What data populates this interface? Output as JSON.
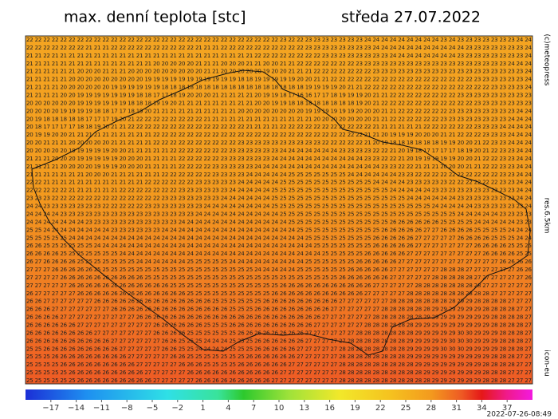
{
  "title": "max. denní teplota [stc]",
  "date": "středa 27.07.2022",
  "credit": "(c)meteopress",
  "resolution": "res.6.5km",
  "model": "icon-eu",
  "timestamp": "2022-07-26-08:49",
  "grid": {
    "rows": [
      "22 22 22 22 22 22 22 22 22 22 22 22 22 22 22 22 22 22 22 22 22 22 22 22 22 22 22 22 22 22 23 22 22 23 23 23 23 23 23 23 24 24 24 24 24 24 24 24 24 23 24 23 23 23 23 23 23 23 24 24",
      "22 22 22 22 22 22 22 21 21 21 22 22 22 22 22 22 22 22 22 22 21 21 21 22 22 22 22 22 22 22 22 22 22 23 23 23 23 23 23 23 23 24 24 24 24 24 24 24 24 24 24 24 23 23 23 23 23 23 23 24",
      "21 21 22 21 21 21 21 21 21 21 21 21 21 21 21 21 21 21 21 21 21 21 21 21 21 21 21 22 22 22 22 22 22 22 22 23 23 23 23 23 23 23 23 24 24 24 24 24 24 24 24 23 23 23 23 23 23 23 23 24",
      "21 21 21 21 21 21 21 21 21 21 21 21 21 21 21 20 20 20 20 20 21 21 21 20 20 20 21 21 20 20 21 21 22 22 22 22 22 22 22 23 23 23 23 23 23 23 23 23 23 23 23 23 23 23 23 23 23 24 24 24",
      "21 21 21 21 21 21 20 20 20 21 21 21 20 20 20 20 20 20 20 20 20 21 21 20 20 20 20 20 19 20 20 21 21 21 22 22 22 22 22 22 22 23 23 23 23 23 23 23 23 23 23 23 23 23 23 23 23 23 23 24",
      "21 21 21 21 21 20 20 20 20 20 20 20 20 20 19 19 19 19 19 19 19 19 19 19 19 18 18 19 19 19 19 19 20 20 21 21 22 22 22 22 22 22 22 22 22 22 22 22 22 22 22 22 22 23 23 23 23 23 23 24",
      "21 21 21 21 20 20 20 20 20 20 19 19 19 19 19 19 18 18 18 18 18 18 18 18 18 18 18 18 18 18 18 18 18 19 19 19 19 20 21 21 22 22 22 22 22 22 22 22 22 22 22 22 22 22 22 23 23 23 23 24",
      "21 21 21 21 20 20 19 19 19 19 19 19 19 18 18 17 17 18 19 20 20 20 21 21 21 21 21 20 19 19 18 17 16 16 17 17 18 19 19 19 20 21 21 22 22 22 22 22 22 22 22 23 23 23 23 23 23 23 23 23",
      "20 20 20 20 20 20 19 19 19 19 19 19 18 18 18 19 19 20 21 21 21 21 21 21 21 21 21 20 20 19 19 18 18 18 18 18 18 18 18 19 20 21 22 22 22 22 22 22 22 22 22 22 22 23 23 23 23 23 23 23",
      "20 20 20 20 19 19 19 19 18 18 17 17 18 19 20 21 21 21 21 21 21 21 21 21 21 20 20 20 20 20 20 20 20 19 19 19 19 19 19 20 20 20 21 21 22 22 22 22 22 22 23 23 23 23 23 23 23 23 24 24",
      "20 19 18 18 18 18 18 17 17 17 19 20 21 22 22 22 22 22 22 22 22 21 21 21 21 21 21 21 21 21 21 21 21 21 20 20 20 20 20 20 20 21 21 22 22 22 22 22 22 23 23 23 23 23 23 23 23 24 24 24",
      "20 18 17 17 17 17 18 18 19 20 21 21 22 22 22 22 22 22 22 22 22 22 22 22 22 22 21 21 21 21 22 22 22 22 22 22 22 22 22 22 22 21 21 21 21 21 21 22 22 22 22 22 22 23 23 23 24 24 24 24",
      "20 19 19 20 20 21 21 21 21 21 21 21 21 21 21 22 22 22 22 22 22 22 22 22 22 22 22 22 22 22 22 22 22 22 22 22 22 22 22 22 21 21 20 19 19 19 20 20 20 21 21 22 22 22 23 23 23 24 24 24",
      "20 20 21 21 21 20 20 20 20 20 21 21 21 21 21 22 22 22 22 22 22 22 22 22 22 23 23 23 23 23 23 23 23 23 23 22 22 22 22 22 21 20 19 18 18 18 18 18 18 19 19 20 20 21 22 23 23 24 24 24",
      "20 20 20 20 20 19 19 19 19 19 20 20 21 21 21 21 21 22 22 22 22 22 22 22 23 23 23 23 23 23 24 24 24 24 24 24 24 23 23 23 23 22 22 21 20 19 18 17 17 17 17 18 19 20 21 22 23 23 24 24",
      "21 21 21 20 20 20 19 19 19 19 19 20 20 20 21 21 21 21 22 22 22 22 22 23 23 23 23 23 23 24 24 24 24 24 24 24 24 24 24 24 23 23 22 22 21 20 19 19 19 19 19 20 20 21 22 22 23 23 24 24",
      "21 21 21 21 20 20 20 20 19 19 19 20 20 20 21 21 21 21 22 22 22 22 23 23 23 23 23 24 24 24 24 24 24 24 24 24 24 24 24 24 24 24 23 23 22 22 21 21 21 20 20 20 21 21 22 22 23 23 24 24",
      "21 21 21 21 21 21 21 20 20 20 21 21 21 21 21 21 22 22 22 22 22 22 23 23 23 23 24 24 24 24 24 25 25 25 25 25 25 25 24 24 24 24 24 24 23 23 22 22 22 22 22 22 22 22 22 22 23 23 24 24",
      "22 22 21 21 21 21 21 21 21 21 21 21 21 21 22 22 22 22 22 22 23 23 23 23 23 24 24 24 24 24 25 25 25 25 25 25 25 25 25 25 25 24 24 24 24 23 23 23 23 23 22 22 22 22 22 22 23 23 24 24",
      "22 22 22 22 22 21 21 21 21 21 21 22 22 22 22 22 22 22 23 23 23 23 23 23 24 24 24 24 24 25 25 25 25 25 25 25 25 25 25 25 25 25 25 24 24 24 24 24 23 23 23 23 23 23 23 23 23 23 24 24",
      "23 23 23 22 22 22 22 22 22 22 22 22 22 22 22 22 23 23 23 23 23 23 23 24 24 24 24 24 24 25 25 25 25 25 25 25 25 25 25 25 25 25 25 25 25 24 24 24 24 24 24 23 23 23 23 23 23 23 24 24",
      "24 24 23 23 23 23 23 23 23 22 22 22 22 22 23 23 23 23 23 23 23 24 24 24 24 24 24 24 24 25 25 25 25 25 25 25 25 25 25 25 25 25 25 25 25 25 25 25 24 24 24 24 24 23 23 23 23 23 23 24",
      "24 24 24 24 23 23 23 23 23 23 23 23 23 23 23 23 23 23 23 23 24 24 24 24 24 24 24 24 24 24 25 25 25 25 25 25 25 25 25 25 25 25 25 25 25 25 25 25 25 25 25 24 24 24 24 24 23 23 23 23",
      "24 24 24 24 24 24 24 23 23 23 23 23 23 23 23 23 23 23 24 24 24 24 24 24 24 24 24 24 24 24 24 25 25 25 25 25 25 25 25 25 25 25 25 26 26 26 26 26 26 25 25 25 25 24 24 24 24 24 23 23",
      "25 25 24 24 24 24 24 24 24 24 23 23 23 23 23 23 24 24 24 24 24 24 24 24 24 24 24 24 24 24 24 24 25 25 25 25 25 25 25 25 25 25 26 26 26 26 26 27 27 26 26 26 26 25 25 25 25 24 24 24",
      "25 25 25 25 25 24 24 24 24 24 24 24 24 24 24 24 24 24 24 24 24 24 24 24 24 24 24 24 24 24 24 24 24 25 25 25 25 25 25 25 25 26 26 26 26 26 27 27 27 27 27 26 26 26 26 25 25 25 24 24",
      "26 26 25 25 25 25 25 25 24 24 24 24 24 24 24 24 24 24 24 24 24 24 24 24 24 24 24 24 24 24 24 24 24 24 25 25 25 25 25 25 25 26 26 26 26 26 27 27 27 27 27 27 27 26 26 26 26 25 25 25",
      "26 26 26 26 25 25 25 25 25 25 25 24 24 24 24 24 24 24 24 24 24 24 24 24 24 24 24 24 24 24 24 24 24 24 24 25 25 25 25 25 26 26 26 26 26 27 27 27 27 27 27 27 27 27 26 26 26 26 25 25",
      "26 27 26 26 26 26 25 25 25 25 25 25 25 24 24 24 24 24 24 25 25 25 25 25 24 24 24 24 24 24 24 24 24 25 25 25 25 25 25 26 26 26 26 26 27 27 27 27 27 27 27 27 27 27 27 27 26 26 26 26",
      "27 27 27 26 26 26 26 26 25 25 25 25 25 25 25 25 25 25 25 25 25 25 25 25 25 25 25 24 24 24 24 24 25 25 25 25 25 25 26 26 26 26 26 27 27 27 27 27 27 28 28 28 27 27 27 27 27 27 26 26",
      "27 27 27 27 26 26 26 26 26 26 26 26 26 26 25 25 25 25 25 25 25 25 25 25 25 25 25 25 25 25 25 25 25 25 25 25 25 26 26 26 26 26 26 27 27 27 27 27 28 28 28 28 28 27 27 27 27 27 27 26",
      "27 27 27 27 27 26 26 26 26 26 26 26 26 26 26 26 26 25 25 25 25 25 25 25 25 25 25 25 25 25 26 26 26 26 26 26 26 26 26 26 26 27 27 27 27 27 28 28 28 28 28 28 28 28 27 27 27 27 27 27",
      "26 27 27 27 27 27 26 26 26 26 26 26 26 26 26 26 26 26 26 25 25 25 25 25 25 25 25 25 25 26 26 26 26 26 26 26 26 26 26 26 27 27 27 27 27 28 28 28 28 28 28 28 28 28 28 27 27 27 27 27",
      "26 26 27 27 27 27 27 27 26 26 26 26 26 26 26 26 26 26 26 26 26 26 25 25 25 25 25 25 26 26 26 26 26 26 26 26 26 27 27 27 27 27 27 28 28 28 28 28 28 28 28 29 29 28 28 28 28 27 27 27",
      "26 26 26 27 27 27 27 27 27 27 26 26 26 26 26 26 26 26 26 26 26 26 26 26 25 25 25 26 26 26 26 26 26 26 26 26 27 27 27 27 27 27 28 28 28 28 28 28 29 29 29 29 29 29 28 28 28 28 27 27",
      "26 26 26 26 27 27 27 27 27 27 27 27 27 26 26 26 26 26 26 26 26 26 26 26 26 26 26 26 26 26 26 26 26 26 26 27 27 27 27 27 27 28 28 28 28 28 28 29 29 29 29 29 29 29 29 28 28 28 28 27",
      "26 26 26 26 26 26 27 27 27 27 27 27 27 27 27 26 26 26 26 26 26 25 25 25 26 26 26 26 26 26 26 26 26 26 27 27 27 27 27 27 28 28 28 28 28 28 29 29 29 29 29 29 29 29 29 28 28 28 28 27",
      "26 26 26 26 26 26 26 26 27 27 27 27 27 27 27 26 26 26 26 25 25 25 25 25 25 26 26 26 26 26 26 26 26 27 27 27 27 27 27 28 28 28 28 28 28 28 29 29 29 29 29 30 30 29 29 29 28 28 28 27",
      "26 26 26 26 26 26 26 26 26 26 27 27 27 27 27 27 26 26 25 25 25 24 24 24 25 25 25 26 26 26 26 26 26 27 27 27 27 27 28 28 28 28 28 28 28 29 29 29 29 29 30 30 30 29 29 29 28 28 28 27",
      "25 25 26 26 26 26 26 26 26 26 26 27 27 27 27 27 26 26 25 25 24 24 24 24 25 25 25 26 26 26 26 26 27 27 27 27 27 28 28 28 28 28 28 28 28 29 29 29 29 30 30 30 29 29 29 29 28 28 28 27",
      "25 25 25 26 26 26 26 26 26 26 26 26 27 27 27 27 27 26 26 25 25 25 25 25 25 25 26 26 26 26 26 26 27 27 27 27 27 28 28 28 28 28 28 28 28 29 29 29 29 29 29 29 29 29 29 28 28 28 27 27",
      "25 25 25 25 26 26 26 26 26 26 26 26 26 27 27 27 27 27 26 26 26 25 25 25 25 26 26 26 26 26 26 27 27 27 27 27 27 28 28 28 28 28 28 28 28 28 29 29 29 29 29 29 29 29 28 28 28 28 27 27",
      "25 25 25 25 25 26 26 26 26 26 26 26 26 26 27 27 27 27 27 26 26 26 26 26 26 26 26 26 26 26 27 27 27 27 27 27 27 28 28 28 28 28 28 28 28 28 28 29 29 29 29 29 29 29 28 28 28 27 27 27",
      "25 25 25 25 25 25 26 26 26 26 26 26 26 26 26 27 27 27 27 27 26 26 26 26 26 26 26 26 26 27 27 27 27 27 27 27 27 28 28 28 28 28 28 28 28 28 28 28 29 29 29 29 29 29 28 28 28 27 27 27"
    ]
  },
  "colorbar": {
    "range": [
      -20,
      40
    ],
    "ticks": [
      {
        "value": -17,
        "label": "−17"
      },
      {
        "value": -14,
        "label": "−14"
      },
      {
        "value": -11,
        "label": "−11"
      },
      {
        "value": -8,
        "label": "−8"
      },
      {
        "value": -5,
        "label": "−5"
      },
      {
        "value": -2,
        "label": "−2"
      },
      1,
      4,
      7,
      10,
      13,
      16,
      19,
      22,
      25,
      28,
      31,
      34,
      37
    ]
  }
}
